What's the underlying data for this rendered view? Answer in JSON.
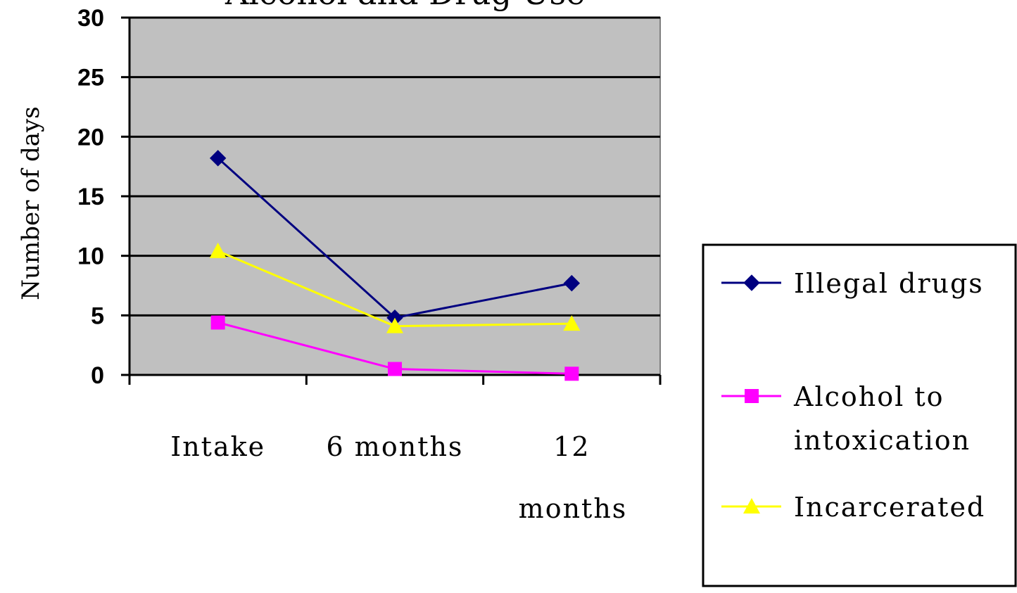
{
  "chart_data": {
    "type": "line",
    "title": "Alcohol and Drug Use",
    "ylabel": "Number of days",
    "xlabel": "",
    "categories": [
      "Intake",
      "6 months",
      "12 months"
    ],
    "category_display": [
      [
        "Intake"
      ],
      [
        "6 months"
      ],
      [
        "12",
        "months"
      ]
    ],
    "ylim": [
      0,
      30
    ],
    "yticks": [
      "0",
      "5",
      "10",
      "15",
      "20",
      "25",
      "30"
    ],
    "grid": true,
    "legend_position": "right",
    "series": [
      {
        "name": "Illegal drugs",
        "legend_lines": [
          "Illegal drugs"
        ],
        "values": [
          18.2,
          4.8,
          7.7
        ],
        "color": "#000080",
        "marker": "diamond"
      },
      {
        "name": "Alcohol to intoxication",
        "legend_lines": [
          "Alcohol to",
          "intoxication"
        ],
        "values": [
          4.4,
          0.5,
          0.1
        ],
        "color": "#ff00ff",
        "marker": "square"
      },
      {
        "name": "Incarcerated",
        "legend_lines": [
          "Incarcerated"
        ],
        "values": [
          10.4,
          4.1,
          4.3
        ],
        "color": "#ffff00",
        "marker": "triangle"
      }
    ],
    "plot_background": "#c0c0c0"
  }
}
